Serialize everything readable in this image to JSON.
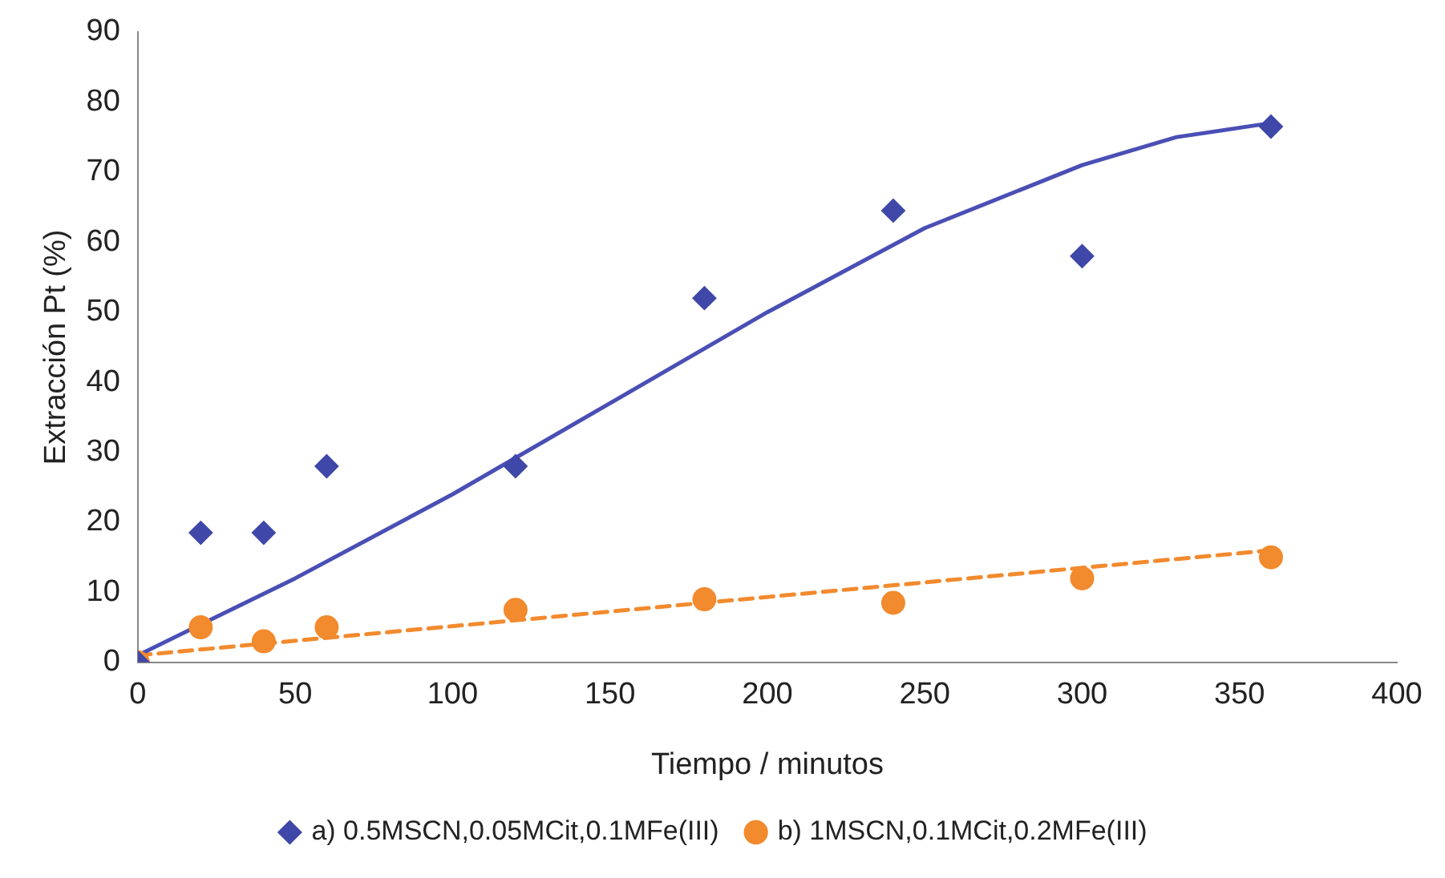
{
  "chart_data": {
    "type": "scatter",
    "xlabel": "Tiempo / minutos",
    "ylabel": "Extracción Pt (%)",
    "xlim": [
      0,
      400
    ],
    "xticks": [
      0,
      50,
      100,
      150,
      200,
      250,
      300,
      350,
      400
    ],
    "ylim": [
      0,
      90
    ],
    "yticks": [
      0,
      10,
      20,
      30,
      40,
      50,
      60,
      70,
      80,
      90
    ],
    "grid": false,
    "legend": "bottom",
    "series": [
      {
        "name": "a) 0.5MSCN,0.05MCit,0.1MFe(III)",
        "marker": "diamond",
        "color": "#3f48a8",
        "x": [
          0,
          20,
          40,
          60,
          120,
          180,
          240,
          300,
          360
        ],
        "values": [
          0,
          18.5,
          18.5,
          28,
          28,
          52,
          64.5,
          58,
          76.5
        ]
      },
      {
        "name": "b) 1MSCN,0.1MCit,0.2MFe(III)",
        "marker": "circle",
        "color": "#f28a2e",
        "x": [
          0,
          20,
          40,
          60,
          120,
          180,
          240,
          300,
          360
        ],
        "values": [
          0,
          5,
          3,
          5,
          7.5,
          9,
          8.5,
          12,
          15
        ]
      },
      {
        "type": "line",
        "marker": "none",
        "line_style": "solid",
        "color": "#4a4fb5",
        "x": [
          0,
          50,
          100,
          150,
          200,
          250,
          300,
          330,
          360
        ],
        "values": [
          1,
          12,
          24,
          37,
          50,
          62,
          71,
          75,
          77
        ]
      },
      {
        "type": "line",
        "marker": "none",
        "line_style": "dashed",
        "color": "#f28a2e",
        "x": [
          0,
          360
        ],
        "values": [
          1,
          16
        ]
      }
    ]
  }
}
